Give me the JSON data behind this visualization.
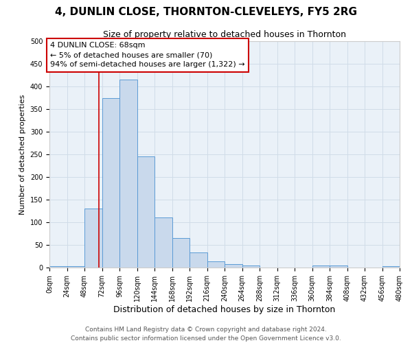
{
  "title": "4, DUNLIN CLOSE, THORNTON-CLEVELEYS, FY5 2RG",
  "subtitle": "Size of property relative to detached houses in Thornton",
  "xlabel": "Distribution of detached houses by size in Thornton",
  "ylabel": "Number of detached properties",
  "bin_edges": [
    0,
    24,
    48,
    72,
    96,
    120,
    144,
    168,
    192,
    216,
    240,
    264,
    288,
    312,
    336,
    360,
    384,
    408,
    432,
    456,
    480
  ],
  "bar_heights": [
    3,
    3,
    130,
    375,
    415,
    245,
    110,
    65,
    33,
    14,
    8,
    5,
    0,
    0,
    0,
    5,
    5,
    0,
    0,
    3
  ],
  "bar_color": "#c9d9ec",
  "bar_edge_color": "#5b9bd5",
  "property_line_x": 68,
  "property_line_color": "#cc0000",
  "annotation_line1": "4 DUNLIN CLOSE: 68sqm",
  "annotation_line2": "← 5% of detached houses are smaller (70)",
  "annotation_line3": "94% of semi-detached houses are larger (1,322) →",
  "annotation_box_color": "#cc0000",
  "ylim": [
    0,
    500
  ],
  "yticks": [
    0,
    50,
    100,
    150,
    200,
    250,
    300,
    350,
    400,
    450,
    500
  ],
  "xtick_labels": [
    "0sqm",
    "24sqm",
    "48sqm",
    "72sqm",
    "96sqm",
    "120sqm",
    "144sqm",
    "168sqm",
    "192sqm",
    "216sqm",
    "240sqm",
    "264sqm",
    "288sqm",
    "312sqm",
    "336sqm",
    "360sqm",
    "384sqm",
    "408sqm",
    "432sqm",
    "456sqm",
    "480sqm"
  ],
  "grid_color": "#d0dce8",
  "background_color": "#eaf1f8",
  "footer_line1": "Contains HM Land Registry data © Crown copyright and database right 2024.",
  "footer_line2": "Contains public sector information licensed under the Open Government Licence v3.0.",
  "title_fontsize": 11,
  "subtitle_fontsize": 9,
  "tick_fontsize": 7,
  "xlabel_fontsize": 9,
  "ylabel_fontsize": 8,
  "annotation_fontsize": 8,
  "footer_fontsize": 6.5
}
